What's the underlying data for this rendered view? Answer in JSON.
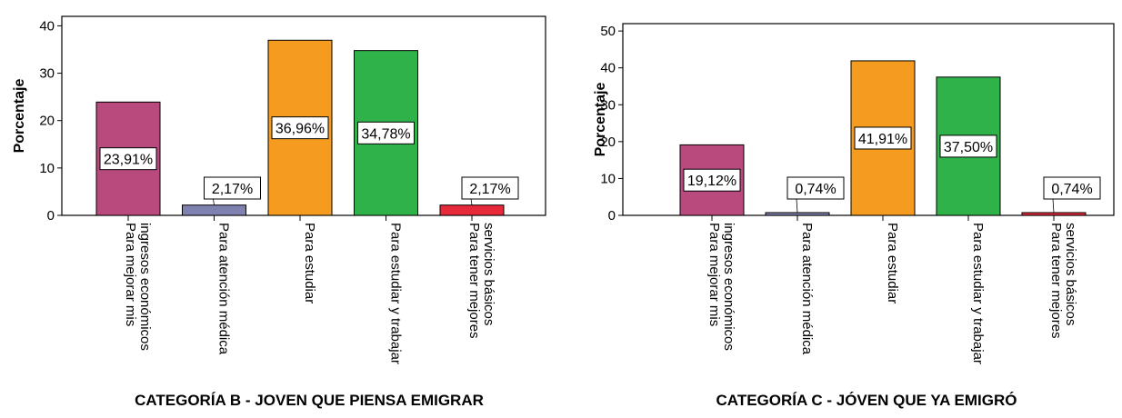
{
  "chart_data": [
    {
      "type": "bar",
      "title": "CATEGORÍA B - JOVEN QUE PIENSA EMIGRAR",
      "ylabel": "Porcentaje",
      "ylim": [
        0,
        42
      ],
      "yticks": [
        "0",
        "10",
        "20",
        "30",
        "40"
      ],
      "categories": [
        [
          "Para mejorar mis",
          "ingresos económicos"
        ],
        [
          "Para atención médica"
        ],
        [
          "Para estudiar"
        ],
        [
          "Para estudiar y trabajar"
        ],
        [
          "Para tener mejores",
          "servicios básicos"
        ]
      ],
      "values": [
        23.91,
        2.17,
        36.96,
        34.78,
        2.17
      ],
      "labels": [
        "23,91%",
        "2,17%",
        "36,96%",
        "34,78%",
        "2,17%"
      ],
      "colors": [
        "#b94a7e",
        "#7f82b0",
        "#f59b1f",
        "#2fb24a",
        "#e8293a"
      ],
      "grid": false,
      "legend": "none"
    },
    {
      "type": "bar",
      "title": "CATEGORÍA C - JÓVEN QUE YA EMIGRÓ",
      "ylabel": "Porcentaje",
      "ylim": [
        0,
        52
      ],
      "yticks": [
        "0",
        "10",
        "20",
        "30",
        "40",
        "50"
      ],
      "categories": [
        [
          "Para mejorar mis",
          "ingresos económicos"
        ],
        [
          "Para atención médica"
        ],
        [
          "Para estudiar"
        ],
        [
          "Para estudiar y trabajar"
        ],
        [
          "Para tener mejores",
          "servicios básicos"
        ]
      ],
      "values": [
        19.12,
        0.74,
        41.91,
        37.5,
        0.74
      ],
      "labels": [
        "19,12%",
        "0,74%",
        "41,91%",
        "37,50%",
        "0,74%"
      ],
      "colors": [
        "#b94a7e",
        "#7f82b0",
        "#f59b1f",
        "#2fb24a",
        "#e8293a"
      ],
      "grid": false,
      "legend": "none"
    }
  ]
}
